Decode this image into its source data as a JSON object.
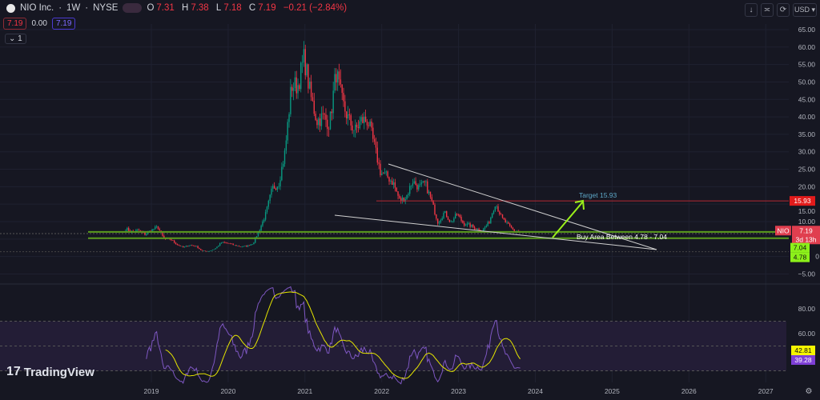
{
  "header": {
    "symbol": "NIO Inc.",
    "interval": "1W",
    "exchange": "NYSE",
    "separator": " · ",
    "ohlc": {
      "o_label": "O",
      "o": "7.31",
      "h_label": "H",
      "h": "7.38",
      "l_label": "L",
      "l": "7.18",
      "c_label": "C",
      "c": "7.19",
      "change": "−0.21 (−2.84%)"
    },
    "bid": "7.19",
    "spread": "0.00",
    "ask": "7.19",
    "indicator_toggle": "1"
  },
  "toolbar": {
    "down_icon": "arrow-down-icon",
    "collapse_icon": "collapse-icon",
    "refresh_icon": "refresh-icon",
    "currency": "USD"
  },
  "watermark": "TradingView",
  "colors": {
    "bg": "#161722",
    "up": "#089981",
    "down": "#f23645",
    "rsi": "#7e57c2",
    "rsi_ma": "#e5e500",
    "zone": "#5b9c1d",
    "target": "#b22833",
    "arrow": "#9bf01a"
  },
  "chart_data": {
    "type": "candlestick",
    "interval": "weekly",
    "price_axis": {
      "ticks": [
        "65.00",
        "60.00",
        "55.00",
        "50.00",
        "45.00",
        "40.00",
        "35.00",
        "30.00",
        "25.00",
        "20.00",
        "15.00",
        "10.00",
        "0",
        "−5.00"
      ],
      "range": [
        -7,
        67
      ]
    },
    "time_axis": {
      "ticks": [
        "2019",
        "2020",
        "2021",
        "2022",
        "2023",
        "2024",
        "2025",
        "2026",
        "2027"
      ]
    },
    "monthly_closes": {
      "start": "2018-09",
      "values": [
        8,
        7,
        7.5,
        6.4,
        7.5,
        8.5,
        5,
        5,
        3.5,
        2.6,
        3.3,
        3.0,
        1.6,
        1.5,
        2.2,
        4.0,
        3.8,
        3.3,
        2.8,
        3.0,
        3.8,
        7.7,
        12.4,
        19.5,
        21,
        30,
        49,
        49,
        57,
        46,
        39,
        40,
        38,
        53,
        44,
        39,
        36,
        39,
        39,
        31.7,
        24,
        23,
        21,
        16,
        17,
        21.7,
        19.7,
        21,
        15.8,
        9.7,
        12.7,
        9.75,
        12.2,
        9.4,
        8.9,
        8.0,
        7.5,
        9.7,
        15.4,
        11,
        9,
        7.3,
        7.19
      ]
    },
    "last_price": {
      "symbol": "NIO",
      "value": "7.19",
      "countdown": "3d 13h"
    },
    "drawings": {
      "target_label": "Target 15.93",
      "target": "15.93",
      "zone_label": "Buy Area Between 4.78 - 7.04",
      "zone_high": "7.04",
      "zone_low": "4.78"
    },
    "rsi": {
      "ticks": [
        "80.00",
        "60.00"
      ],
      "bands": [
        70,
        30
      ],
      "value": "39.28",
      "ma_value": "42.81",
      "length": 14
    }
  }
}
